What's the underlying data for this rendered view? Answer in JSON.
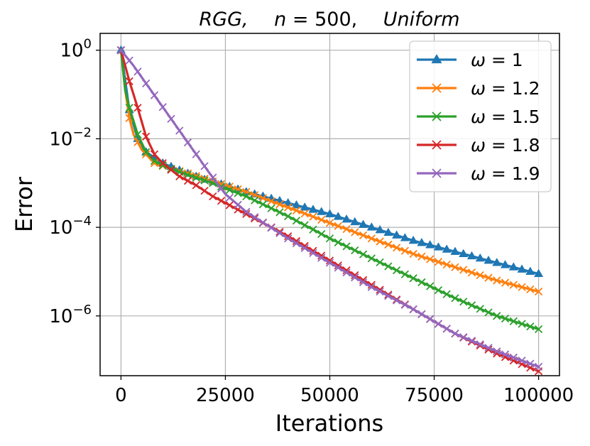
{
  "chart_data": {
    "type": "line",
    "title": {
      "graph": "RGG,",
      "n_label": "n",
      "n_eq": " = 500,",
      "distribution": "Uniform"
    },
    "xlabel": "Iterations",
    "ylabel": "Error",
    "yscale": "log",
    "xlim": [
      -5000,
      105000
    ],
    "ylim_exp": [
      -7.35,
      0.38
    ],
    "grid": true,
    "legend_position": "upper right",
    "x_ticks": [
      0,
      25000,
      50000,
      75000,
      100000
    ],
    "x_tick_labels": [
      "0",
      "25000",
      "50000",
      "75000",
      "100000"
    ],
    "y_ticks_exp": [
      0,
      -2,
      -4,
      -6
    ],
    "y_tick_labels": [
      {
        "base": "10",
        "exp": "0"
      },
      {
        "base": "10",
        "exp": "−2"
      },
      {
        "base": "10",
        "exp": "−4"
      },
      {
        "base": "10",
        "exp": "−6"
      }
    ],
    "series": [
      {
        "name": "ω = 1",
        "symbol": "ω",
        "value": "= 1",
        "color": "#1f77b4",
        "marker": "triangle",
        "key_x": [
          0,
          2000,
          4000,
          6000,
          10000,
          15000,
          20000,
          25000,
          30000,
          40000,
          50000,
          60000,
          70000,
          80000,
          90000,
          100000
        ],
        "key_log": [
          0,
          -1.35,
          -2.0,
          -2.3,
          -2.55,
          -2.75,
          -2.92,
          -3.05,
          -3.2,
          -3.45,
          -3.7,
          -4.0,
          -4.3,
          -4.55,
          -4.8,
          -5.05
        ],
        "marker_interval": 2000
      },
      {
        "name": "ω = 1.2",
        "symbol": "ω",
        "value": "= 1.2",
        "color": "#ff7f0e",
        "marker": "x",
        "key_x": [
          0,
          1500,
          3000,
          5000,
          8000,
          12000,
          16000,
          20000,
          25000,
          30000,
          40000,
          50000,
          60000,
          70000,
          80000,
          90000,
          100000
        ],
        "key_log": [
          0,
          -1.35,
          -1.9,
          -2.25,
          -2.55,
          -2.68,
          -2.78,
          -2.9,
          -3.05,
          -3.2,
          -3.55,
          -3.9,
          -4.25,
          -4.6,
          -4.9,
          -5.2,
          -5.45
        ],
        "marker_interval": 2000
      },
      {
        "name": "ω = 1.5",
        "symbol": "ω",
        "value": "= 1.5",
        "color": "#2ca02c",
        "marker": "x",
        "key_x": [
          0,
          1000,
          2000,
          4000,
          6000,
          8000,
          10000,
          14000,
          18000,
          22000,
          25000,
          30000,
          40000,
          50000,
          60000,
          70000,
          80000,
          90000,
          100000
        ],
        "key_log": [
          0,
          -0.9,
          -1.3,
          -1.9,
          -2.3,
          -2.5,
          -2.6,
          -2.75,
          -2.88,
          -3.0,
          -3.12,
          -3.3,
          -3.75,
          -4.25,
          -4.7,
          -5.15,
          -5.6,
          -6.0,
          -6.3
        ],
        "marker_interval": 2000
      },
      {
        "name": "ω = 1.8",
        "symbol": "ω",
        "value": "= 1.8",
        "color": "#d62728",
        "marker": "x",
        "key_x": [
          0,
          2000,
          4000,
          6000,
          8000,
          10000,
          14000,
          18000,
          22000,
          25000,
          30000,
          40000,
          50000,
          60000,
          70000,
          80000,
          90000,
          100000
        ],
        "key_log": [
          0,
          -0.7,
          -1.3,
          -1.95,
          -2.35,
          -2.55,
          -2.85,
          -3.05,
          -3.3,
          -3.45,
          -3.7,
          -4.2,
          -4.75,
          -5.3,
          -5.85,
          -6.4,
          -6.85,
          -7.25
        ],
        "marker_interval": 2000
      },
      {
        "name": "ω = 1.9",
        "symbol": "ω",
        "value": "= 1.9",
        "color": "#9467bd",
        "marker": "x",
        "key_x": [
          0,
          3000,
          6000,
          9000,
          12000,
          15000,
          18000,
          21000,
          25000,
          30000,
          40000,
          50000,
          60000,
          70000,
          80000,
          90000,
          100000
        ],
        "key_log": [
          0,
          -0.35,
          -0.75,
          -1.15,
          -1.55,
          -1.95,
          -2.35,
          -2.75,
          -3.25,
          -3.65,
          -4.25,
          -4.8,
          -5.35,
          -5.85,
          -6.4,
          -6.8,
          -7.15
        ],
        "marker_interval": 2000
      }
    ]
  }
}
